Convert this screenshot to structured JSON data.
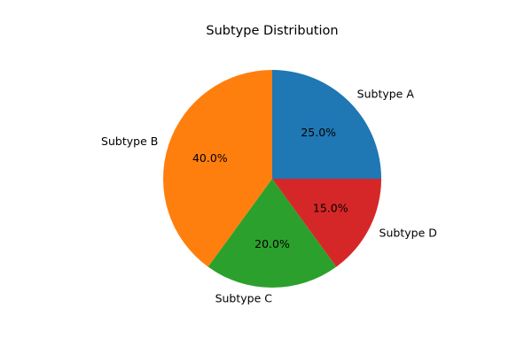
{
  "chart_data": {
    "type": "pie",
    "title": "Subtype Distribution",
    "categories": [
      "Subtype A",
      "Subtype B",
      "Subtype C",
      "Subtype D"
    ],
    "values": [
      25.0,
      40.0,
      20.0,
      15.0
    ],
    "percent_labels": [
      "25.0%",
      "40.0%",
      "20.0%",
      "15.0%"
    ],
    "colors": [
      "#1f77b4",
      "#ff7f0e",
      "#2ca02c",
      "#d62728"
    ],
    "start_angle_deg": 0,
    "direction": "counterclockwise",
    "legend": "none"
  }
}
